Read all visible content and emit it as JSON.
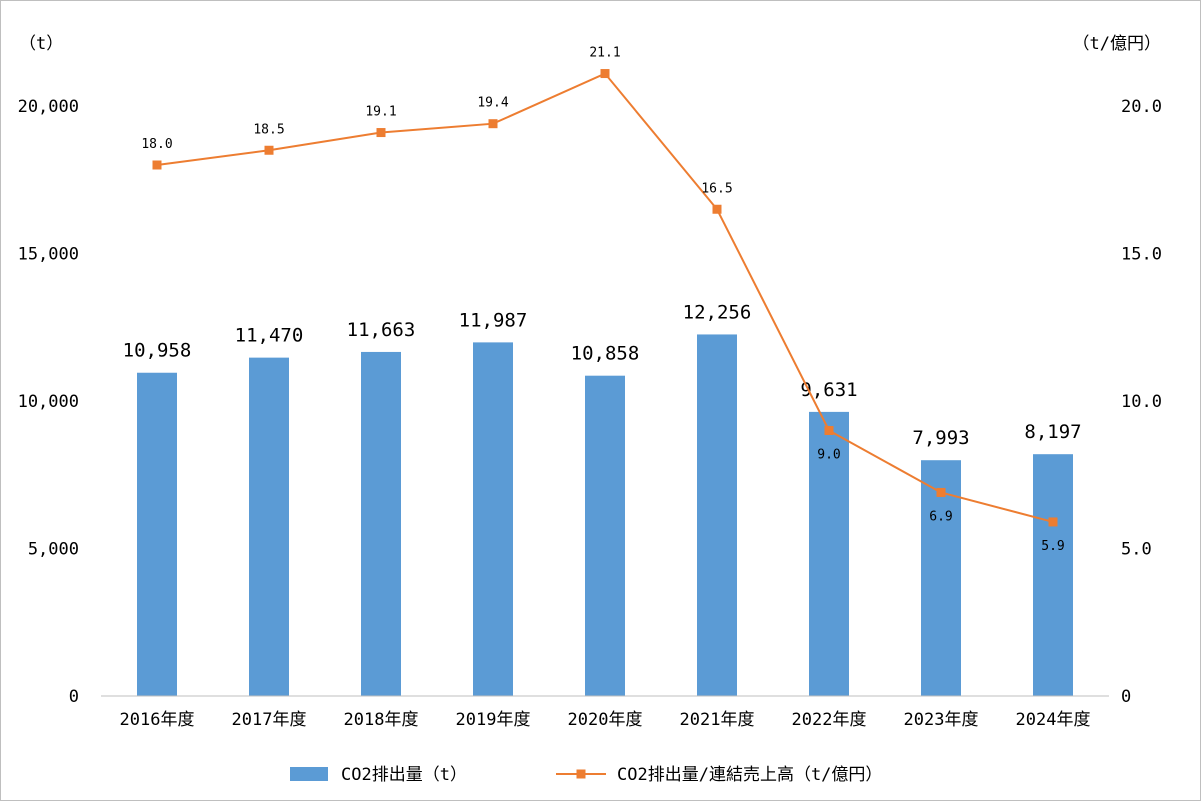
{
  "colors": {
    "bar": "#5b9bd5",
    "line": "#ed7d31",
    "axis": "#bfbfbf"
  },
  "chart_data": {
    "type": "bar",
    "categories": [
      "2016年度",
      "2017年度",
      "2018年度",
      "2019年度",
      "2020年度",
      "2021年度",
      "2022年度",
      "2023年度",
      "2024年度"
    ],
    "y_unit_left": "（t）",
    "y_unit_right": "（t/億円）",
    "ylim_left": [
      0,
      20000
    ],
    "ylim_right": [
      0,
      20
    ],
    "left_ticks": [
      "0",
      "5,000",
      "10,000",
      "15,000",
      "20,000"
    ],
    "right_ticks": [
      "0",
      "5.0",
      "10.0",
      "15.0",
      "20.0"
    ],
    "grid": false,
    "legend_position": "bottom",
    "series": [
      {
        "name": "CO2排出量（t）",
        "type": "bar",
        "axis": "left",
        "values": [
          10958,
          11470,
          11663,
          11987,
          10858,
          12256,
          9631,
          7993,
          8197
        ],
        "labels": [
          "10,958",
          "11,470",
          "11,663",
          "11,987",
          "10,858",
          "12,256",
          "9,631",
          "7,993",
          "8,197"
        ]
      },
      {
        "name": "CO2排出量/連結売上高（t/億円）",
        "type": "line",
        "axis": "right",
        "values": [
          18.0,
          18.5,
          19.1,
          19.4,
          21.1,
          16.5,
          9.0,
          6.9,
          5.9
        ],
        "labels": [
          "18.0",
          "18.5",
          "19.1",
          "19.4",
          "21.1",
          "16.5",
          "9.0",
          "6.9",
          "5.9"
        ]
      }
    ]
  }
}
